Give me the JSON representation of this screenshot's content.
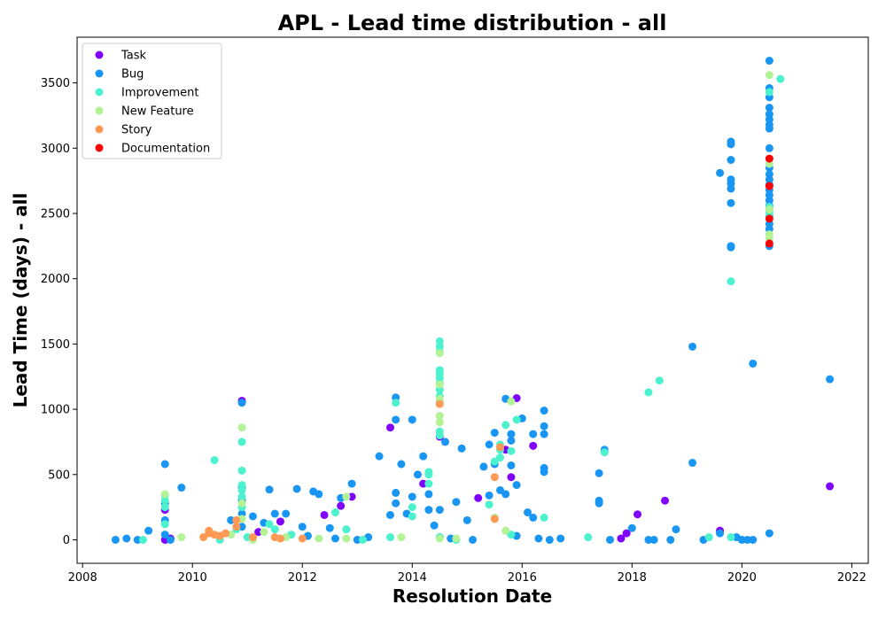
{
  "chart_data": {
    "type": "scatter",
    "title": "APL - Lead time distribution - all",
    "xlabel": "Resolution Date",
    "ylabel": "Lead Time (days) - all",
    "xlim": [
      2007.9,
      2022.3
    ],
    "ylim": [
      -180,
      3850
    ],
    "x_ticks": [
      2008,
      2010,
      2012,
      2014,
      2016,
      2018,
      2020,
      2022
    ],
    "y_ticks": [
      0,
      500,
      1000,
      1500,
      2000,
      2500,
      3000,
      3500
    ],
    "grid": false,
    "legend_position": "top-left",
    "series": [
      {
        "name": "Task",
        "color": "#8000ff",
        "points": [
          [
            2009.5,
            0
          ],
          [
            2009.5,
            230
          ],
          [
            2009.6,
            10
          ],
          [
            2010.9,
            1065
          ],
          [
            2011.2,
            60
          ],
          [
            2011.6,
            140
          ],
          [
            2012.4,
            190
          ],
          [
            2012.7,
            260
          ],
          [
            2012.9,
            330
          ],
          [
            2013.6,
            860
          ],
          [
            2014.2,
            430
          ],
          [
            2014.5,
            790
          ],
          [
            2015.2,
            320
          ],
          [
            2015.7,
            690
          ],
          [
            2015.8,
            480
          ],
          [
            2015.9,
            1085
          ],
          [
            2016.2,
            720
          ],
          [
            2017.9,
            50
          ],
          [
            2017.8,
            10
          ],
          [
            2018.1,
            195
          ],
          [
            2018.6,
            300
          ],
          [
            2019.6,
            70
          ],
          [
            2021.6,
            410
          ]
        ]
      },
      {
        "name": "Bug",
        "color": "#1996f3",
        "points": [
          [
            2008.6,
            0
          ],
          [
            2008.8,
            10
          ],
          [
            2009.0,
            0
          ],
          [
            2009.2,
            70
          ],
          [
            2009.5,
            580
          ],
          [
            2009.5,
            280
          ],
          [
            2009.5,
            150
          ],
          [
            2009.5,
            40
          ],
          [
            2009.6,
            0
          ],
          [
            2009.8,
            400
          ],
          [
            2010.5,
            30
          ],
          [
            2010.7,
            150
          ],
          [
            2010.9,
            1050
          ],
          [
            2010.9,
            400
          ],
          [
            2010.9,
            300
          ],
          [
            2010.9,
            200
          ],
          [
            2010.9,
            100
          ],
          [
            2011.1,
            180
          ],
          [
            2011.3,
            130
          ],
          [
            2011.4,
            385
          ],
          [
            2011.5,
            200
          ],
          [
            2011.7,
            200
          ],
          [
            2011.9,
            390
          ],
          [
            2012.0,
            100
          ],
          [
            2012.1,
            30
          ],
          [
            2012.2,
            370
          ],
          [
            2012.3,
            350
          ],
          [
            2012.5,
            90
          ],
          [
            2012.6,
            10
          ],
          [
            2012.7,
            320
          ],
          [
            2012.9,
            430
          ],
          [
            2013.0,
            0
          ],
          [
            2013.2,
            20
          ],
          [
            2013.4,
            640
          ],
          [
            2013.6,
            190
          ],
          [
            2013.7,
            1090
          ],
          [
            2013.7,
            920
          ],
          [
            2013.7,
            360
          ],
          [
            2013.7,
            280
          ],
          [
            2013.8,
            580
          ],
          [
            2013.9,
            200
          ],
          [
            2014.0,
            920
          ],
          [
            2014.0,
            330
          ],
          [
            2014.1,
            500
          ],
          [
            2014.2,
            640
          ],
          [
            2014.3,
            350
          ],
          [
            2014.3,
            230
          ],
          [
            2014.4,
            110
          ],
          [
            2014.5,
            230
          ],
          [
            2014.5,
            20
          ],
          [
            2014.6,
            750
          ],
          [
            2014.7,
            10
          ],
          [
            2014.8,
            290
          ],
          [
            2014.9,
            700
          ],
          [
            2015.0,
            150
          ],
          [
            2015.1,
            0
          ],
          [
            2015.3,
            560
          ],
          [
            2015.4,
            730
          ],
          [
            2015.4,
            340
          ],
          [
            2015.5,
            820
          ],
          [
            2015.5,
            580
          ],
          [
            2015.6,
            380
          ],
          [
            2015.7,
            1080
          ],
          [
            2015.7,
            350
          ],
          [
            2015.8,
            810
          ],
          [
            2015.8,
            760
          ],
          [
            2015.8,
            570
          ],
          [
            2015.9,
            420
          ],
          [
            2015.9,
            30
          ],
          [
            2016.0,
            930
          ],
          [
            2016.1,
            210
          ],
          [
            2016.2,
            810
          ],
          [
            2016.2,
            170
          ],
          [
            2016.3,
            10
          ],
          [
            2016.4,
            990
          ],
          [
            2016.4,
            870
          ],
          [
            2016.4,
            810
          ],
          [
            2016.4,
            550
          ],
          [
            2016.4,
            520
          ],
          [
            2016.5,
            0
          ],
          [
            2016.7,
            10
          ],
          [
            2017.4,
            510
          ],
          [
            2017.4,
            300
          ],
          [
            2017.4,
            280
          ],
          [
            2017.5,
            690
          ],
          [
            2017.6,
            0
          ],
          [
            2018.0,
            90
          ],
          [
            2018.3,
            0
          ],
          [
            2018.4,
            0
          ],
          [
            2018.7,
            0
          ],
          [
            2018.8,
            80
          ],
          [
            2019.1,
            1480
          ],
          [
            2019.1,
            590
          ],
          [
            2019.3,
            0
          ],
          [
            2019.6,
            2810
          ],
          [
            2019.6,
            50
          ],
          [
            2019.8,
            3050
          ],
          [
            2019.8,
            3030
          ],
          [
            2019.8,
            2910
          ],
          [
            2019.8,
            2760
          ],
          [
            2019.8,
            2730
          ],
          [
            2019.8,
            2690
          ],
          [
            2019.8,
            2580
          ],
          [
            2019.8,
            2250
          ],
          [
            2019.8,
            2240
          ],
          [
            2019.9,
            20
          ],
          [
            2020.0,
            0
          ],
          [
            2020.1,
            0
          ],
          [
            2020.2,
            1350
          ],
          [
            2020.2,
            0
          ],
          [
            2020.5,
            3670
          ],
          [
            2020.5,
            3460
          ],
          [
            2020.5,
            3390
          ],
          [
            2020.5,
            3310
          ],
          [
            2020.5,
            3260
          ],
          [
            2020.5,
            3220
          ],
          [
            2020.5,
            3180
          ],
          [
            2020.5,
            3150
          ],
          [
            2020.5,
            3000
          ],
          [
            2020.5,
            2850
          ],
          [
            2020.5,
            2800
          ],
          [
            2020.5,
            2760
          ],
          [
            2020.5,
            2720
          ],
          [
            2020.5,
            2680
          ],
          [
            2020.5,
            2640
          ],
          [
            2020.5,
            2600
          ],
          [
            2020.5,
            2560
          ],
          [
            2020.5,
            2480
          ],
          [
            2020.5,
            2420
          ],
          [
            2020.5,
            2380
          ],
          [
            2020.5,
            2250
          ],
          [
            2020.5,
            50
          ],
          [
            2021.6,
            1230
          ]
        ]
      },
      {
        "name": "Improvement",
        "color": "#4cf2ce",
        "points": [
          [
            2009.1,
            0
          ],
          [
            2009.5,
            340
          ],
          [
            2009.5,
            300
          ],
          [
            2009.5,
            250
          ],
          [
            2009.5,
            120
          ],
          [
            2010.4,
            610
          ],
          [
            2010.5,
            0
          ],
          [
            2010.8,
            80
          ],
          [
            2010.9,
            750
          ],
          [
            2010.9,
            530
          ],
          [
            2010.9,
            420
          ],
          [
            2010.9,
            380
          ],
          [
            2010.9,
            330
          ],
          [
            2010.9,
            250
          ],
          [
            2011.0,
            20
          ],
          [
            2011.4,
            120
          ],
          [
            2011.5,
            80
          ],
          [
            2011.8,
            40
          ],
          [
            2012.6,
            210
          ],
          [
            2012.8,
            80
          ],
          [
            2013.1,
            0
          ],
          [
            2013.6,
            20
          ],
          [
            2013.7,
            1050
          ],
          [
            2014.0,
            250
          ],
          [
            2014.0,
            180
          ],
          [
            2014.3,
            520
          ],
          [
            2014.3,
            500
          ],
          [
            2014.3,
            430
          ],
          [
            2014.5,
            1520
          ],
          [
            2014.5,
            1480
          ],
          [
            2014.5,
            1440
          ],
          [
            2014.5,
            1300
          ],
          [
            2014.5,
            1270
          ],
          [
            2014.5,
            1240
          ],
          [
            2014.5,
            1200
          ],
          [
            2014.5,
            1150
          ],
          [
            2014.5,
            1100
          ],
          [
            2014.5,
            1050
          ],
          [
            2014.5,
            830
          ],
          [
            2014.5,
            800
          ],
          [
            2014.5,
            20
          ],
          [
            2014.8,
            0
          ],
          [
            2015.4,
            270
          ],
          [
            2015.5,
            600
          ],
          [
            2015.6,
            730
          ],
          [
            2015.6,
            690
          ],
          [
            2015.6,
            630
          ],
          [
            2015.7,
            880
          ],
          [
            2015.8,
            680
          ],
          [
            2015.8,
            40
          ],
          [
            2015.9,
            920
          ],
          [
            2016.4,
            170
          ],
          [
            2017.2,
            20
          ],
          [
            2017.5,
            670
          ],
          [
            2018.3,
            1130
          ],
          [
            2018.5,
            1220
          ],
          [
            2019.4,
            20
          ],
          [
            2019.8,
            1980
          ],
          [
            2019.8,
            20
          ],
          [
            2020.5,
            3430
          ],
          [
            2020.5,
            2550
          ],
          [
            2020.5,
            2510
          ],
          [
            2020.5,
            2490
          ],
          [
            2020.7,
            3530
          ]
        ]
      },
      {
        "name": "New Feature",
        "color": "#b2f396",
        "points": [
          [
            2009.5,
            350
          ],
          [
            2009.8,
            20
          ],
          [
            2010.7,
            40
          ],
          [
            2010.9,
            860
          ],
          [
            2010.9,
            280
          ],
          [
            2010.9,
            160
          ],
          [
            2011.1,
            0
          ],
          [
            2011.3,
            60
          ],
          [
            2011.7,
            20
          ],
          [
            2012.3,
            10
          ],
          [
            2012.8,
            330
          ],
          [
            2012.8,
            10
          ],
          [
            2013.8,
            20
          ],
          [
            2014.5,
            1430
          ],
          [
            2014.5,
            1190
          ],
          [
            2014.5,
            1080
          ],
          [
            2014.5,
            950
          ],
          [
            2014.5,
            900
          ],
          [
            2014.5,
            10
          ],
          [
            2014.8,
            10
          ],
          [
            2015.5,
            170
          ],
          [
            2015.7,
            70
          ],
          [
            2015.8,
            1060
          ],
          [
            2020.5,
            3560
          ],
          [
            2020.5,
            2880
          ],
          [
            2020.5,
            2530
          ],
          [
            2020.5,
            2340
          ],
          [
            2020.5,
            2310
          ]
        ]
      },
      {
        "name": "Story",
        "color": "#ff9954",
        "points": [
          [
            2010.2,
            20
          ],
          [
            2010.3,
            50
          ],
          [
            2010.3,
            70
          ],
          [
            2010.4,
            40
          ],
          [
            2010.5,
            30
          ],
          [
            2010.6,
            50
          ],
          [
            2010.8,
            100
          ],
          [
            2010.8,
            150
          ],
          [
            2011.1,
            20
          ],
          [
            2011.5,
            20
          ],
          [
            2011.6,
            10
          ],
          [
            2012.0,
            10
          ],
          [
            2014.5,
            1040
          ],
          [
            2015.5,
            160
          ],
          [
            2015.5,
            480
          ],
          [
            2015.6,
            710
          ]
        ]
      },
      {
        "name": "Documentation",
        "color": "#ff0000",
        "points": [
          [
            2020.5,
            2920
          ],
          [
            2020.5,
            2710
          ],
          [
            2020.5,
            2460
          ],
          [
            2020.5,
            2270
          ]
        ]
      }
    ]
  }
}
